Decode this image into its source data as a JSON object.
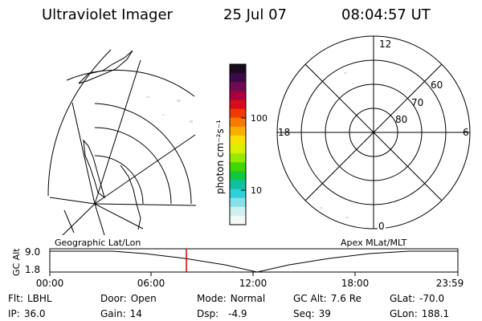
{
  "header": {
    "instrument": "Ultraviolet Imager",
    "date": "25 Jul 07",
    "time": "08:04:57 UT"
  },
  "colorbar": {
    "unit_label": "photon cm⁻²s⁻¹",
    "ticks": [
      "100",
      "10"
    ],
    "colors": [
      "#1a0a20",
      "#3a0a4a",
      "#700a50",
      "#a8003c",
      "#d80a1e",
      "#f03a00",
      "#f87a00",
      "#f8b000",
      "#f8e000",
      "#d8f000",
      "#98e800",
      "#40d800",
      "#10c840",
      "#10c0a0",
      "#30d0d8",
      "#88e0e8",
      "#d0f0f0",
      "#f0f8f8"
    ]
  },
  "left_panel": {
    "label": "Geographic Lat/Lon"
  },
  "right_panel": {
    "label": "Apex MLat/MLT",
    "mlt_labels": {
      "top": "12",
      "left": "18",
      "right": "6",
      "bottom": "0"
    },
    "lat_labels": [
      "60",
      "70",
      "80"
    ]
  },
  "altitude_plot": {
    "ylabel": "GC Alt",
    "yticks": [
      "9.0",
      "1.8"
    ],
    "xticks": [
      "00:00",
      "06:00",
      "12:00",
      "18:00",
      "23:59"
    ],
    "marker_color": "#e00000"
  },
  "info": {
    "flt": {
      "label": "Flt:",
      "value": "LBHL"
    },
    "ip": {
      "label": "IP:",
      "value": "36.0"
    },
    "door": {
      "label": "Door:",
      "value": "Open"
    },
    "gain": {
      "label": "Gain:",
      "value": "14"
    },
    "mode": {
      "label": "Mode:",
      "value": "Normal"
    },
    "dsp": {
      "label": "Dsp:",
      "value": "-4.9"
    },
    "gcalt": {
      "label": "GC Alt:",
      "value": "7.6 Re"
    },
    "seq": {
      "label": "Seq:",
      "value": "39"
    },
    "glat": {
      "label": "GLat:",
      "value": "-70.0"
    },
    "glon": {
      "label": "GLon:",
      "value": "188.1"
    }
  }
}
